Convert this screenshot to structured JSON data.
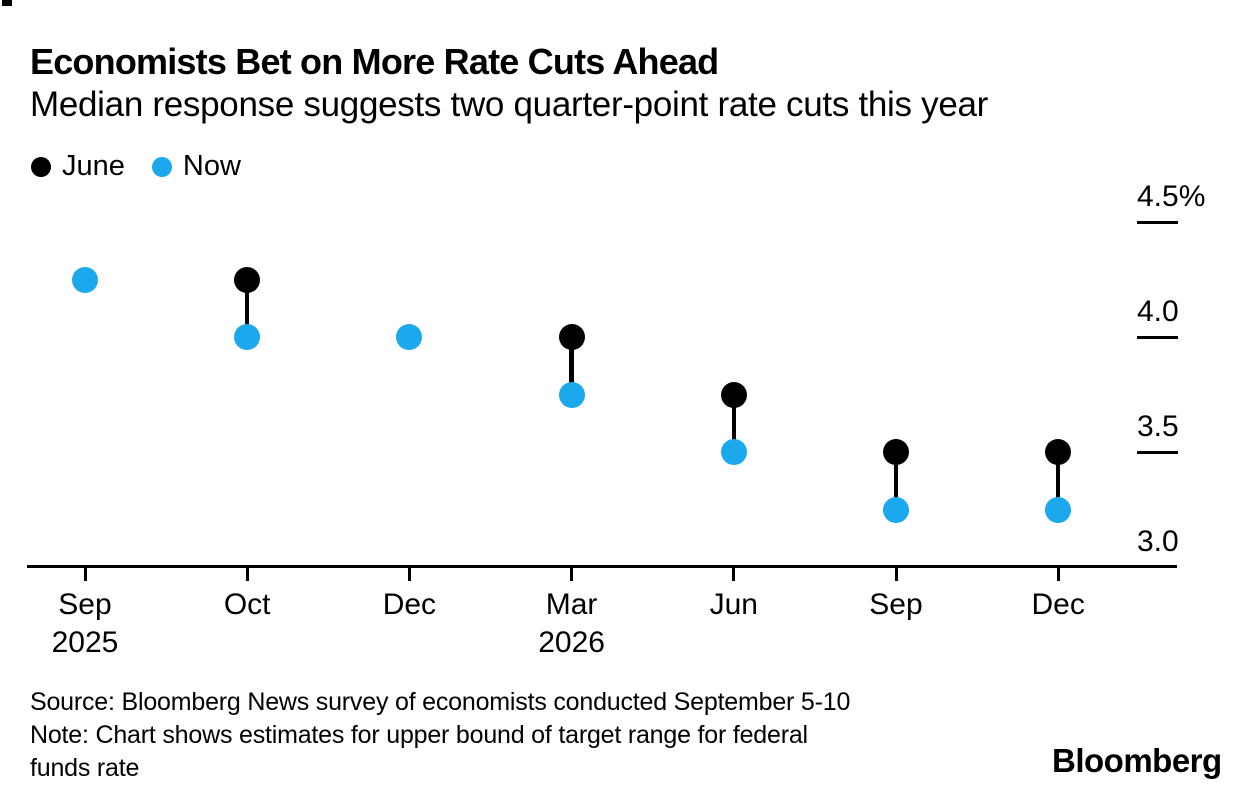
{
  "header": {
    "title": "Economists Bet on More Rate Cuts Ahead",
    "subtitle": "Median response suggests two quarter-point rate cuts this year"
  },
  "legend": {
    "items": [
      {
        "label": "June",
        "color": "#000000"
      },
      {
        "label": "Now",
        "color": "#1CA8EC"
      }
    ]
  },
  "chart_data": {
    "type": "scatter",
    "title": "Economists Bet on More Rate Cuts Ahead",
    "subtitle": "Median response suggests two quarter-point rate cuts this year",
    "unit": "percent (upper bound of fed funds target range)",
    "categories": [
      {
        "label": "Sep",
        "year": "2025"
      },
      {
        "label": "Oct"
      },
      {
        "label": "Dec"
      },
      {
        "label": "Mar",
        "year": "2026"
      },
      {
        "label": "Jun"
      },
      {
        "label": "Sep"
      },
      {
        "label": "Dec"
      }
    ],
    "series": [
      {
        "name": "June",
        "color": "#000000",
        "values": [
          null,
          4.25,
          null,
          4.0,
          3.75,
          3.5,
          3.5
        ]
      },
      {
        "name": "Now",
        "color": "#1CA8EC",
        "values": [
          4.25,
          4.0,
          4.0,
          3.75,
          3.5,
          3.25,
          3.25
        ]
      }
    ],
    "y_ticks": [
      {
        "value": 4.5,
        "label": "4.5%"
      },
      {
        "value": 4.0,
        "label": "4.0"
      },
      {
        "value": 3.5,
        "label": "3.5"
      },
      {
        "value": 3.0,
        "label": "3.0"
      }
    ],
    "ylim": [
      3.0,
      4.65
    ],
    "xlabel": "",
    "ylabel": "",
    "grid": false,
    "legend_position": "top-left"
  },
  "footer": {
    "source": "Source: Bloomberg News survey of economists conducted September 5-10",
    "note": "Note: Chart shows estimates for upper bound of target range for federal\nfunds rate",
    "brand": "Bloomberg"
  }
}
